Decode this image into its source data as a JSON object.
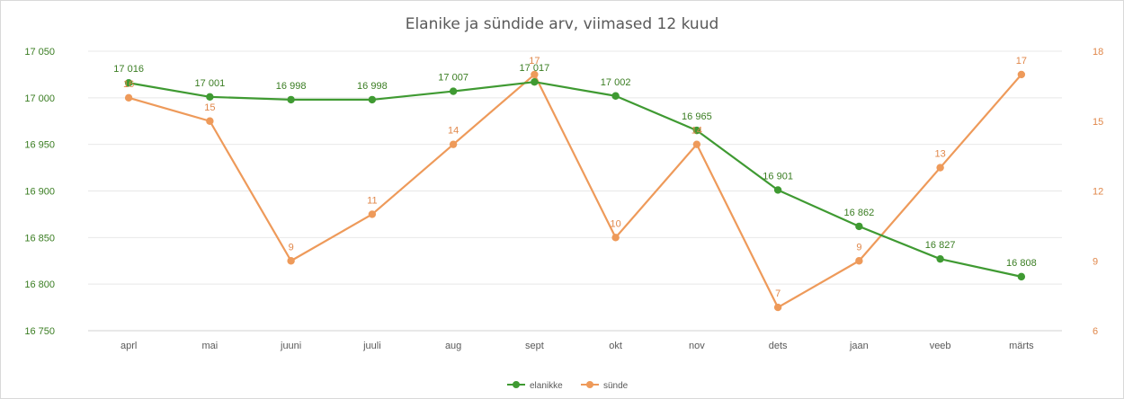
{
  "colors": {
    "elanikke": "#3f9a32",
    "sunde": "#ee9a5a",
    "grid": "#e8e8e8"
  },
  "chart_data": {
    "type": "line",
    "title": "Elanike ja sündide arv, viimased 12 kuud",
    "categories": [
      "aprl",
      "mai",
      "juuni",
      "juuli",
      "aug",
      "sept",
      "okt",
      "nov",
      "dets",
      "jaan",
      "veeb",
      "märts"
    ],
    "y_left": {
      "lim": [
        16750,
        17050
      ],
      "ticks": [
        16750,
        16800,
        16850,
        16900,
        16950,
        17000,
        17050
      ],
      "tick_labels": [
        "16 750",
        "16 800",
        "16 850",
        "16 900",
        "16 950",
        "17 000",
        "17 050"
      ]
    },
    "y_right": {
      "lim": [
        6,
        18
      ],
      "ticks": [
        6,
        9,
        12,
        15,
        18
      ],
      "tick_labels": [
        "6",
        "9",
        "12",
        "15",
        "18"
      ]
    },
    "grid": true,
    "legend_position": "bottom",
    "series": [
      {
        "name": "elanikke",
        "axis": "left",
        "values": [
          17016,
          17001,
          16998,
          16998,
          17007,
          17017,
          17002,
          16965,
          16901,
          16862,
          16827,
          16808
        ],
        "labels": [
          "17 016",
          "17 001",
          "16 998",
          "16 998",
          "17 007",
          "17 017",
          "17 002",
          "16 965",
          "16 901",
          "16 862",
          "16 827",
          "16 808"
        ]
      },
      {
        "name": "sünde",
        "axis": "right",
        "values": [
          16,
          15,
          9,
          11,
          14,
          17,
          10,
          14,
          7,
          9,
          13,
          17
        ],
        "labels": [
          "16",
          "15",
          "9",
          "11",
          "14",
          "17",
          "10",
          "14",
          "7",
          "9",
          "13",
          "17"
        ]
      }
    ]
  }
}
